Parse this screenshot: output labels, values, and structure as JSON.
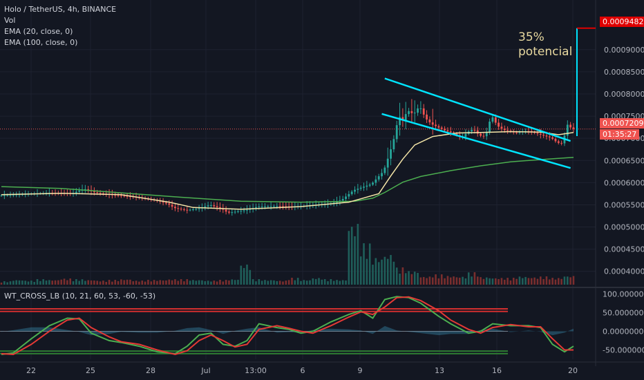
{
  "legend": {
    "title": "Holo / TetherUS, 4h, BINANCE",
    "vol": "Vol",
    "ema20": "EMA (20, close, 0)",
    "ema100": "EMA (100, close, 0)"
  },
  "oscillator_legend": "WT_CROSS_LB (10, 21, 60, 53, -60, -53)",
  "annotation": {
    "line1": "35%",
    "line2": "potencial"
  },
  "price_tags": {
    "target": "0.00094824",
    "current": "0.0007209",
    "countdown": "01:35:27"
  },
  "colors": {
    "background": "#131722",
    "up": "#26a69a",
    "down": "#ef5350",
    "ema20": "#f5e6a8",
    "ema100": "#4caf50",
    "channel": "#00e5ff",
    "target": "#e00000"
  },
  "chart_data": {
    "type": "candlestick",
    "symbol": "Holo / TetherUS",
    "interval": "4h",
    "exchange": "BINANCE",
    "price_axis": {
      "ticks": [
        "0.0009000",
        "0.0008500",
        "0.0008000",
        "0.0007500",
        "0.0007000",
        "0.0006500",
        "0.0006000",
        "0.0005500",
        "0.0005000",
        "0.0004500",
        "0.0004000"
      ],
      "range": [
        0.00037,
        0.00099
      ]
    },
    "time_axis": {
      "ticks": [
        "22",
        "25",
        "28",
        "Jul",
        "13:00",
        "6",
        "9",
        "13",
        "16",
        "20"
      ]
    },
    "price_path": [
      [
        0,
        0.000571
      ],
      [
        8,
        0.000574
      ],
      [
        16,
        0.000577
      ],
      [
        24,
        0.000576
      ],
      [
        28,
        0.000586
      ],
      [
        32,
        0.000577
      ],
      [
        38,
        0.000572
      ],
      [
        46,
        0.000567
      ],
      [
        52,
        0.00056
      ],
      [
        56,
        0.000552
      ],
      [
        58,
        0.000543
      ],
      [
        62,
        0.000538
      ],
      [
        66,
        0.000541
      ],
      [
        70,
        0.00055
      ],
      [
        74,
        0.000541
      ],
      [
        76,
        0.000532
      ],
      [
        82,
        0.000538
      ],
      [
        86,
        0.000546
      ],
      [
        92,
        0.000547
      ],
      [
        98,
        0.000546
      ],
      [
        104,
        0.000549
      ],
      [
        110,
        0.000552
      ],
      [
        114,
        0.000561
      ],
      [
        118,
        0.000583
      ],
      [
        124,
        0.000597
      ],
      [
        128,
        0.000626
      ],
      [
        130,
        0.000666
      ],
      [
        132,
        0.000712
      ],
      [
        133,
        0.000756
      ],
      [
        134,
        0.000735
      ],
      [
        136,
        0.000763
      ],
      [
        138,
        0.000754
      ],
      [
        140,
        0.000773
      ],
      [
        142,
        0.000745
      ],
      [
        144,
        0.000732
      ],
      [
        148,
        0.000719
      ],
      [
        152,
        0.000709
      ],
      [
        154,
        0.000701
      ],
      [
        156,
        0.000714
      ],
      [
        158,
        0.000721
      ],
      [
        160,
        0.000706
      ],
      [
        162,
        0.000704
      ],
      [
        164,
        0.000752
      ],
      [
        166,
        0.000728
      ],
      [
        168,
        0.000719
      ],
      [
        170,
        0.000716
      ],
      [
        172,
        0.000712
      ],
      [
        176,
        0.000717
      ],
      [
        180,
        0.000709
      ],
      [
        184,
        0.000701
      ],
      [
        186,
        0.00069
      ],
      [
        188,
        0.000688
      ],
      [
        189,
        0.000733
      ],
      [
        191,
        0.000721
      ]
    ],
    "ema20": [
      [
        0,
        0.000573
      ],
      [
        20,
        0.000576
      ],
      [
        40,
        0.000573
      ],
      [
        56,
        0.000556
      ],
      [
        64,
        0.000544
      ],
      [
        80,
        0.00054
      ],
      [
        100,
        0.000546
      ],
      [
        116,
        0.000556
      ],
      [
        126,
        0.000575
      ],
      [
        130,
        0.000615
      ],
      [
        134,
        0.000653
      ],
      [
        138,
        0.000685
      ],
      [
        144,
        0.000704
      ],
      [
        152,
        0.000712
      ],
      [
        160,
        0.000713
      ],
      [
        170,
        0.000715
      ],
      [
        180,
        0.000714
      ],
      [
        186,
        0.000708
      ],
      [
        191,
        0.000713
      ]
    ],
    "ema100": [
      [
        0,
        0.000591
      ],
      [
        20,
        0.000587
      ],
      [
        40,
        0.000577
      ],
      [
        60,
        0.000567
      ],
      [
        80,
        0.000558
      ],
      [
        100,
        0.000556
      ],
      [
        118,
        0.000558
      ],
      [
        124,
        0.000565
      ],
      [
        128,
        0.000578
      ],
      [
        134,
        0.000601
      ],
      [
        140,
        0.000614
      ],
      [
        150,
        0.000627
      ],
      [
        160,
        0.000638
      ],
      [
        170,
        0.000647
      ],
      [
        180,
        0.000652
      ],
      [
        191,
        0.000657
      ]
    ],
    "volume_heights_relative": [
      0.05,
      0.07,
      0.06,
      0.08,
      0.07,
      0.09,
      0.08,
      0.07,
      0.06,
      0.07,
      0.08,
      0.06,
      0.07,
      0.07,
      0.08,
      0.08,
      0.07,
      0.06,
      0.07,
      0.08,
      0.3,
      0.08,
      0.07,
      0.06,
      0.1,
      0.07,
      0.1,
      0.08,
      0.07,
      0.9,
      0.6,
      0.4,
      0.45,
      0.25,
      0.2,
      0.12,
      0.15,
      0.13,
      0.12,
      0.18,
      0.11,
      0.1,
      0.1,
      0.12,
      0.11,
      0.12,
      0.1,
      0.13
    ],
    "channel_upper": [
      [
        0.000835,
        128
      ],
      [
        0.000694,
        190
      ]
    ],
    "channel_lower": [
      [
        0.000755,
        127
      ],
      [
        0.000633,
        190
      ]
    ],
    "target_line": {
      "price": 0.00094824,
      "start_x_index": 191
    },
    "oscillator": {
      "name": "WT_CROSS_LB",
      "params": "(10, 21, 60, 53, -60, -53)",
      "ticks": [
        "100.0000000",
        "50.0000000",
        "0.0000000",
        "-50.0000000"
      ],
      "range": [
        -75,
        110
      ],
      "levels": [
        60,
        53,
        -60,
        -53
      ],
      "wt1": [
        [
          0,
          -62
        ],
        [
          4,
          -58
        ],
        [
          10,
          -20
        ],
        [
          16,
          15
        ],
        [
          22,
          35
        ],
        [
          26,
          33
        ],
        [
          30,
          -5
        ],
        [
          36,
          -25
        ],
        [
          40,
          -30
        ],
        [
          46,
          -40
        ],
        [
          52,
          -55
        ],
        [
          58,
          -60
        ],
        [
          62,
          -40
        ],
        [
          66,
          -10
        ],
        [
          70,
          -5
        ],
        [
          74,
          -35
        ],
        [
          78,
          -40
        ],
        [
          82,
          -25
        ],
        [
          86,
          20
        ],
        [
          92,
          10
        ],
        [
          96,
          5
        ],
        [
          100,
          -5
        ],
        [
          104,
          0
        ],
        [
          110,
          25
        ],
        [
          116,
          45
        ],
        [
          120,
          55
        ],
        [
          124,
          35
        ],
        [
          128,
          85
        ],
        [
          132,
          93
        ],
        [
          136,
          90
        ],
        [
          140,
          75
        ],
        [
          146,
          40
        ],
        [
          150,
          20
        ],
        [
          156,
          -5
        ],
        [
          160,
          0
        ],
        [
          164,
          20
        ],
        [
          170,
          15
        ],
        [
          176,
          15
        ],
        [
          180,
          10
        ],
        [
          184,
          -35
        ],
        [
          188,
          -55
        ],
        [
          191,
          -40
        ]
      ],
      "wt2": [
        [
          0,
          -60
        ],
        [
          4,
          -62
        ],
        [
          10,
          -35
        ],
        [
          16,
          0
        ],
        [
          22,
          30
        ],
        [
          26,
          35
        ],
        [
          30,
          10
        ],
        [
          36,
          -15
        ],
        [
          40,
          -28
        ],
        [
          46,
          -35
        ],
        [
          52,
          -50
        ],
        [
          58,
          -62
        ],
        [
          62,
          -52
        ],
        [
          66,
          -25
        ],
        [
          70,
          -10
        ],
        [
          74,
          -25
        ],
        [
          78,
          -42
        ],
        [
          82,
          -35
        ],
        [
          86,
          5
        ],
        [
          92,
          15
        ],
        [
          96,
          8
        ],
        [
          100,
          0
        ],
        [
          104,
          -5
        ],
        [
          110,
          15
        ],
        [
          116,
          38
        ],
        [
          120,
          52
        ],
        [
          124,
          45
        ],
        [
          128,
          65
        ],
        [
          132,
          90
        ],
        [
          136,
          92
        ],
        [
          140,
          82
        ],
        [
          146,
          55
        ],
        [
          150,
          30
        ],
        [
          156,
          5
        ],
        [
          160,
          -5
        ],
        [
          164,
          10
        ],
        [
          170,
          18
        ],
        [
          176,
          12
        ],
        [
          180,
          12
        ],
        [
          184,
          -20
        ],
        [
          188,
          -50
        ],
        [
          191,
          -50
        ]
      ]
    }
  }
}
